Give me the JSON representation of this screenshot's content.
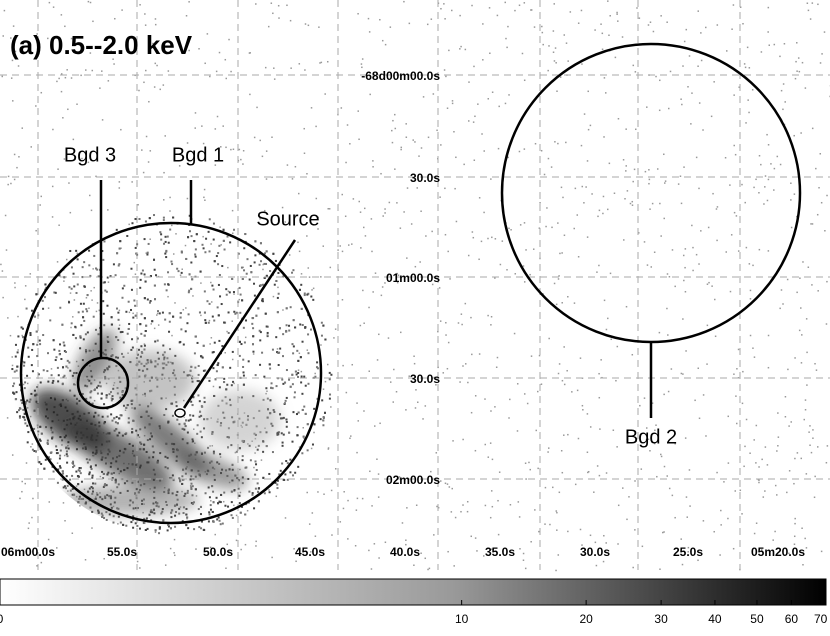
{
  "title": "(a) 0.5--2.0 keV",
  "ra_labels": [
    "06m00.0s",
    "55.0s",
    "50.0s",
    "45.0s",
    "40.0s",
    "35.0s",
    "30.0s",
    "25.0s",
    "05m20.0s"
  ],
  "dec_labels": [
    "-68d00m00.0s",
    "30.0s",
    "01m00.0s",
    "30.0s",
    "02m00.0s"
  ],
  "regions": {
    "bgd1": "Bgd 1",
    "bgd2": "Bgd 2",
    "bgd3": "Bgd 3",
    "source": "Source"
  },
  "colorbar": {
    "scale": "log",
    "lim": [
      0,
      72
    ],
    "ticks": [
      0,
      10,
      20,
      30,
      40,
      50,
      60,
      70
    ]
  }
}
